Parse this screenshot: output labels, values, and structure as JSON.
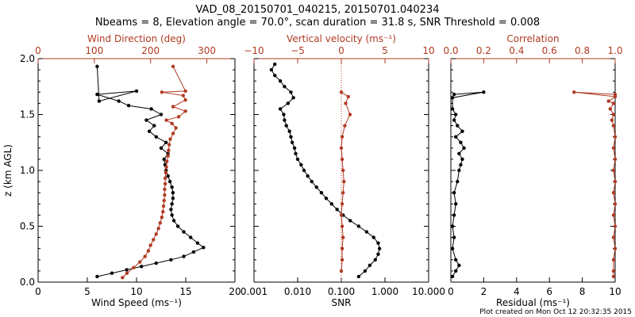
{
  "title_line1": "VAD_08_20150701_040215, 20150701.040234",
  "title_line2": "Nbeams = 8, Elevation angle = 70.0°, scan duration = 31.8 s, SNR Threshold = 0.008",
  "footer": "Plot created on Mon Oct 12 20:32:35 2015",
  "colors": {
    "primary": "#000000",
    "secondary": "#b03a22"
  },
  "chart_data": [
    {
      "type": "scatter",
      "panel": "wind",
      "ylabel": "z (km AGL)",
      "ylim": [
        0,
        2.0
      ],
      "yticks": [
        "0.0",
        "0.5",
        "1.0",
        "1.5",
        "2.0"
      ],
      "xlabel": "Wind Speed (ms⁻¹)",
      "xlim": [
        0,
        20
      ],
      "xticks": [
        "0",
        "5",
        "10",
        "15",
        "20"
      ],
      "top_xlabel": "Wind Direction (deg)",
      "top_xlim": [
        0,
        350
      ],
      "top_xticks": [
        "0",
        "100",
        "200",
        "300"
      ],
      "series": [
        {
          "name": "Wind Speed (ms⁻¹)",
          "axis": "bottom",
          "color": "#000000",
          "points": [
            [
              6.0,
              0.05
            ],
            [
              7.5,
              0.08
            ],
            [
              9.0,
              0.11
            ],
            [
              10.5,
              0.14
            ],
            [
              12.0,
              0.17
            ],
            [
              13.5,
              0.2
            ],
            [
              14.8,
              0.23
            ],
            [
              15.8,
              0.27
            ],
            [
              16.8,
              0.31
            ],
            [
              16.2,
              0.35
            ],
            [
              15.5,
              0.4
            ],
            [
              14.8,
              0.45
            ],
            [
              14.2,
              0.5
            ],
            [
              13.8,
              0.55
            ],
            [
              13.6,
              0.6
            ],
            [
              13.5,
              0.65
            ],
            [
              13.6,
              0.7
            ],
            [
              13.7,
              0.75
            ],
            [
              13.7,
              0.8
            ],
            [
              13.6,
              0.85
            ],
            [
              13.4,
              0.9
            ],
            [
              13.2,
              0.95
            ],
            [
              13.0,
              1.0
            ],
            [
              12.9,
              1.05
            ],
            [
              12.8,
              1.1
            ],
            [
              13.2,
              1.15
            ],
            [
              12.5,
              1.2
            ],
            [
              13.0,
              1.25
            ],
            [
              12.0,
              1.3
            ],
            [
              11.3,
              1.35
            ],
            [
              11.8,
              1.4
            ],
            [
              11.0,
              1.45
            ],
            [
              12.5,
              1.5
            ],
            [
              11.5,
              1.55
            ],
            [
              9.2,
              1.58
            ],
            [
              8.2,
              1.62
            ],
            [
              6.0,
              1.68
            ],
            [
              10.0,
              1.71
            ],
            [
              6.2,
              1.62
            ],
            [
              6.0,
              1.93
            ]
          ]
        },
        {
          "name": "Wind Direction (deg)",
          "axis": "top",
          "color": "#b03a22",
          "points": [
            [
              150,
              0.04
            ],
            [
              158,
              0.08
            ],
            [
              170,
              0.13
            ],
            [
              181,
              0.18
            ],
            [
              190,
              0.23
            ],
            [
              196,
              0.28
            ],
            [
              200,
              0.33
            ],
            [
              205,
              0.38
            ],
            [
              210,
              0.43
            ],
            [
              214,
              0.48
            ],
            [
              217,
              0.53
            ],
            [
              220,
              0.58
            ],
            [
              222,
              0.63
            ],
            [
              223,
              0.68
            ],
            [
              224,
              0.73
            ],
            [
              225,
              0.78
            ],
            [
              225,
              0.83
            ],
            [
              226,
              0.88
            ],
            [
              226,
              0.93
            ],
            [
              227,
              0.98
            ],
            [
              228,
              1.03
            ],
            [
              229,
              1.08
            ],
            [
              231,
              1.13
            ],
            [
              232,
              1.18
            ],
            [
              233,
              1.23
            ],
            [
              235,
              1.28
            ],
            [
              240,
              1.33
            ],
            [
              245,
              1.38
            ],
            [
              238,
              1.42
            ],
            [
              228,
              1.45
            ],
            [
              250,
              1.48
            ],
            [
              262,
              1.53
            ],
            [
              240,
              1.57
            ],
            [
              262,
              1.63
            ],
            [
              258,
              1.67
            ],
            [
              220,
              1.7
            ],
            [
              262,
              1.71
            ],
            [
              240,
              1.93
            ]
          ]
        }
      ]
    },
    {
      "type": "scatter",
      "panel": "vertical",
      "ylim": [
        0,
        2.0
      ],
      "xlabel": "SNR",
      "xscale": "log",
      "xlim": [
        0.001,
        10.0
      ],
      "xticks": [
        "0.001",
        "0.010",
        "0.100",
        "1.000",
        "10.000"
      ],
      "top_xlabel": "Vertical velocity (ms⁻¹)",
      "top_xlim": [
        -10,
        10
      ],
      "top_xticks": [
        "−10",
        "−5",
        "0",
        "5",
        "10"
      ],
      "series": [
        {
          "name": "SNR",
          "axis": "bottom",
          "color": "#000000",
          "points": [
            [
              0.25,
              0.05
            ],
            [
              0.35,
              0.1
            ],
            [
              0.45,
              0.15
            ],
            [
              0.6,
              0.2
            ],
            [
              0.7,
              0.25
            ],
            [
              0.75,
              0.3
            ],
            [
              0.7,
              0.35
            ],
            [
              0.55,
              0.4
            ],
            [
              0.38,
              0.45
            ],
            [
              0.25,
              0.5
            ],
            [
              0.16,
              0.55
            ],
            [
              0.11,
              0.6
            ],
            [
              0.08,
              0.65
            ],
            [
              0.06,
              0.7
            ],
            [
              0.045,
              0.75
            ],
            [
              0.035,
              0.8
            ],
            [
              0.027,
              0.85
            ],
            [
              0.021,
              0.9
            ],
            [
              0.017,
              0.95
            ],
            [
              0.014,
              1.0
            ],
            [
              0.012,
              1.05
            ],
            [
              0.01,
              1.1
            ],
            [
              0.009,
              1.15
            ],
            [
              0.0085,
              1.2
            ],
            [
              0.0075,
              1.25
            ],
            [
              0.007,
              1.3
            ],
            [
              0.0065,
              1.35
            ],
            [
              0.0055,
              1.4
            ],
            [
              0.005,
              1.45
            ],
            [
              0.0048,
              1.5
            ],
            [
              0.004,
              1.55
            ],
            [
              0.006,
              1.6
            ],
            [
              0.008,
              1.65
            ],
            [
              0.007,
              1.7
            ],
            [
              0.005,
              1.75
            ],
            [
              0.004,
              1.8
            ],
            [
              0.003,
              1.85
            ],
            [
              0.0025,
              1.9
            ],
            [
              0.003,
              1.95
            ]
          ]
        },
        {
          "name": "Vertical velocity (ms⁻¹)",
          "axis": "top",
          "color": "#b03a22",
          "points": [
            [
              0.0,
              0.1
            ],
            [
              0.1,
              0.2
            ],
            [
              0.1,
              0.3
            ],
            [
              0.2,
              0.4
            ],
            [
              0.1,
              0.5
            ],
            [
              0.0,
              0.6
            ],
            [
              0.1,
              0.7
            ],
            [
              0.2,
              0.8
            ],
            [
              0.3,
              0.9
            ],
            [
              0.2,
              1.0
            ],
            [
              0.1,
              1.1
            ],
            [
              0.0,
              1.2
            ],
            [
              0.1,
              1.3
            ],
            [
              0.4,
              1.4
            ],
            [
              1.0,
              1.5
            ],
            [
              0.5,
              1.6
            ],
            [
              0.8,
              1.66
            ],
            [
              0.0,
              1.7
            ]
          ]
        }
      ]
    },
    {
      "type": "scatter",
      "panel": "residual",
      "ylim": [
        0,
        2.0
      ],
      "xlabel": "Residual (ms⁻¹)",
      "xlim": [
        0,
        10
      ],
      "xticks": [
        "0",
        "2",
        "4",
        "6",
        "8",
        "10"
      ],
      "top_xlabel": "Correlation",
      "top_xlim": [
        0,
        1.0
      ],
      "top_xticks": [
        "0.0",
        "0.2",
        "0.4",
        "0.6",
        "0.8",
        "1.0"
      ],
      "series": [
        {
          "name": "Residual (ms⁻¹)",
          "axis": "bottom",
          "color": "#000000",
          "points": [
            [
              0.1,
              0.05
            ],
            [
              0.3,
              0.1
            ],
            [
              0.5,
              0.15
            ],
            [
              0.3,
              0.2
            ],
            [
              0.1,
              0.3
            ],
            [
              0.2,
              0.4
            ],
            [
              0.1,
              0.5
            ],
            [
              0.2,
              0.6
            ],
            [
              0.3,
              0.7
            ],
            [
              0.2,
              0.8
            ],
            [
              0.4,
              0.9
            ],
            [
              0.5,
              1.0
            ],
            [
              0.6,
              1.05
            ],
            [
              0.7,
              1.1
            ],
            [
              0.5,
              1.15
            ],
            [
              0.8,
              1.2
            ],
            [
              0.6,
              1.25
            ],
            [
              0.3,
              1.3
            ],
            [
              0.7,
              1.35
            ],
            [
              0.4,
              1.4
            ],
            [
              0.2,
              1.45
            ],
            [
              0.3,
              1.5
            ],
            [
              0.1,
              1.55
            ],
            [
              0.1,
              1.65
            ],
            [
              2.0,
              1.7
            ],
            [
              0.2,
              1.68
            ]
          ]
        },
        {
          "name": "Correlation",
          "axis": "top",
          "color": "#b03a22",
          "points": [
            [
              0.99,
              0.05
            ],
            [
              0.99,
              0.1
            ],
            [
              0.99,
              0.2
            ],
            [
              1.0,
              0.3
            ],
            [
              0.99,
              0.4
            ],
            [
              1.0,
              0.5
            ],
            [
              0.99,
              0.6
            ],
            [
              1.0,
              0.7
            ],
            [
              0.99,
              0.8
            ],
            [
              1.0,
              0.9
            ],
            [
              0.99,
              1.0
            ],
            [
              1.0,
              1.1
            ],
            [
              0.99,
              1.2
            ],
            [
              1.0,
              1.3
            ],
            [
              0.99,
              1.4
            ],
            [
              0.98,
              1.45
            ],
            [
              0.99,
              1.5
            ],
            [
              0.97,
              1.55
            ],
            [
              0.99,
              1.6
            ],
            [
              0.96,
              1.62
            ],
            [
              1.0,
              1.66
            ],
            [
              0.75,
              1.7
            ],
            [
              1.0,
              1.68
            ]
          ]
        }
      ]
    }
  ]
}
